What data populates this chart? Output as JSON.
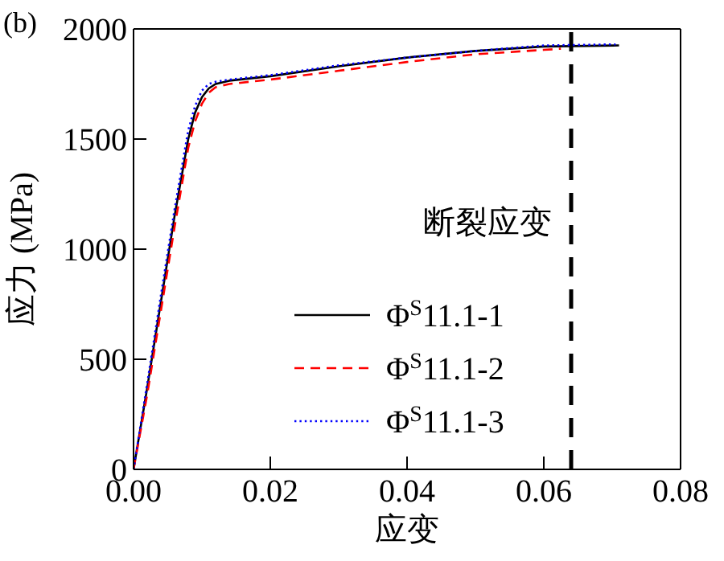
{
  "chart_data": {
    "type": "line",
    "xlabel": "应变",
    "ylabel": "应力 (MPa)",
    "xlim": [
      0,
      0.08
    ],
    "xticks": [
      {
        "value": 0,
        "label": "0.00"
      },
      {
        "value": 0.02,
        "label": "0.02"
      },
      {
        "value": 0.04,
        "label": "0.04"
      },
      {
        "value": 0.06,
        "label": "0.06"
      },
      {
        "value": 0.08,
        "label": "0.08"
      }
    ],
    "ylim": [
      0,
      2000
    ],
    "yticks": [
      0,
      500,
      1000,
      1500,
      2000
    ],
    "grid": false,
    "legend": "bottom right",
    "marker": "none",
    "annotations": [
      "(b)"
    ],
    "ref_lines": [
      {
        "axis": "x",
        "value": 0.064,
        "label": "断裂应变",
        "color": "#000000",
        "line_style": "dashed"
      }
    ],
    "series": [
      {
        "name": "Φ$^{S}$11.1-1",
        "color": "#000000",
        "line_style": "solid",
        "x": [
          0,
          0.002,
          0.004,
          0.006,
          0.008,
          0.009,
          0.01,
          0.011,
          0.012,
          0.014,
          0.02,
          0.03,
          0.04,
          0.05,
          0.06,
          0.071
        ],
        "values": [
          0,
          370,
          760,
          1150,
          1500,
          1620,
          1690,
          1730,
          1750,
          1765,
          1785,
          1830,
          1870,
          1900,
          1920,
          1925
        ]
      },
      {
        "name": "Φ$^{S}$11.1-2",
        "color": "#ff0000",
        "line_style": "dashed",
        "x": [
          0,
          0.002,
          0.004,
          0.006,
          0.008,
          0.009,
          0.01,
          0.011,
          0.012,
          0.014,
          0.02,
          0.03,
          0.04,
          0.05,
          0.06,
          0.0625
        ],
        "values": [
          0,
          340,
          720,
          1100,
          1460,
          1580,
          1660,
          1710,
          1735,
          1750,
          1770,
          1810,
          1850,
          1885,
          1905,
          1910
        ]
      },
      {
        "name": "Φ$^{S}$11.1-3",
        "color": "#0000ff",
        "line_style": "dotted",
        "x": [
          0,
          0.002,
          0.004,
          0.006,
          0.008,
          0.009,
          0.01,
          0.011,
          0.012,
          0.014,
          0.02,
          0.03,
          0.04,
          0.05,
          0.06,
          0.0705
        ],
        "values": [
          0,
          390,
          790,
          1180,
          1540,
          1650,
          1720,
          1750,
          1760,
          1770,
          1790,
          1835,
          1870,
          1900,
          1925,
          1930
        ]
      }
    ]
  }
}
